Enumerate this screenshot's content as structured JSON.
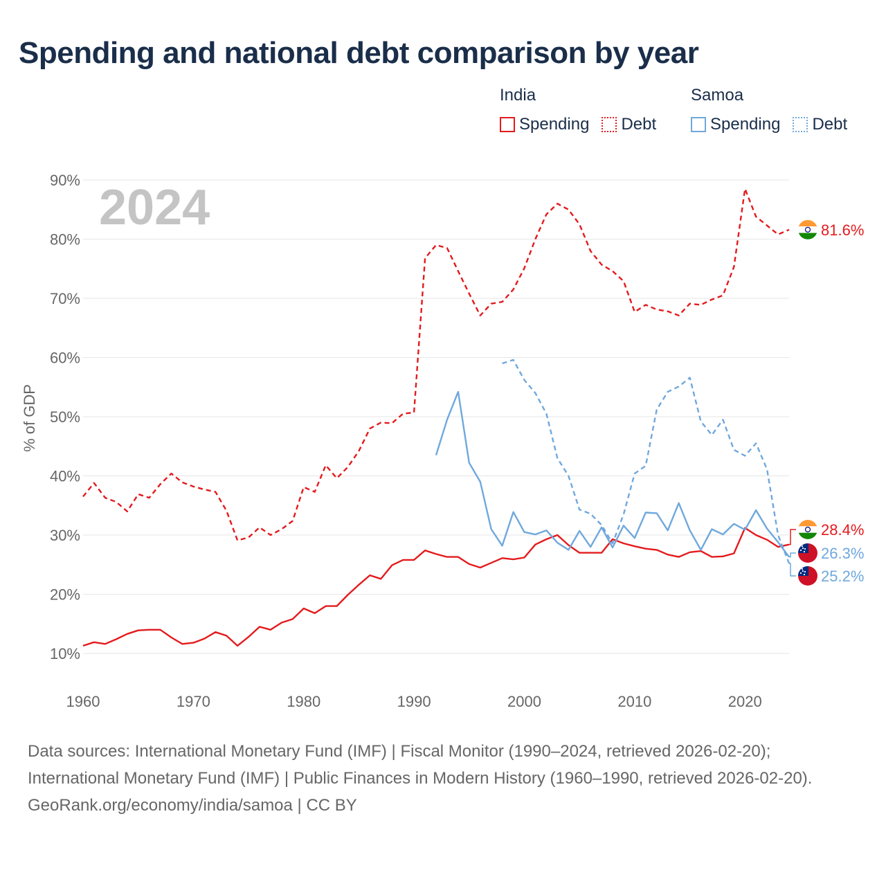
{
  "title": "Spending and national debt comparison by year",
  "legend": {
    "india": {
      "name": "India",
      "spending_label": "Spending",
      "debt_label": "Debt",
      "color": "#e41a1c"
    },
    "samoa": {
      "name": "Samoa",
      "spending_label": "Spending",
      "debt_label": "Debt",
      "color": "#6fa8dc"
    }
  },
  "chart_data": {
    "type": "line",
    "year_label": "2024",
    "ylabel": "% of GDP",
    "xlim": [
      1960,
      2024
    ],
    "ylim": [
      5,
      90
    ],
    "xticks": [
      1960,
      1970,
      1980,
      1990,
      2000,
      2010,
      2020
    ],
    "xtick_labels": [
      "1960",
      "1970",
      "1980",
      "1990",
      "2000",
      "2010",
      "2020"
    ],
    "yticks": [
      10,
      20,
      30,
      40,
      50,
      60,
      70,
      80,
      90
    ],
    "ytick_labels": [
      "10%",
      "20%",
      "30%",
      "40%",
      "50%",
      "60%",
      "70%",
      "80%",
      "90%"
    ],
    "series": [
      {
        "name": "India Spending",
        "country": "India",
        "color": "#e41a1c",
        "dash": "solid",
        "x": [
          1960,
          1961,
          1962,
          1963,
          1964,
          1965,
          1966,
          1967,
          1968,
          1969,
          1970,
          1971,
          1972,
          1973,
          1974,
          1975,
          1976,
          1977,
          1978,
          1979,
          1980,
          1981,
          1982,
          1983,
          1984,
          1985,
          1986,
          1987,
          1988,
          1989,
          1990,
          1991,
          1992,
          1993,
          1994,
          1995,
          1996,
          1997,
          1998,
          1999,
          2000,
          2001,
          2002,
          2003,
          2004,
          2005,
          2006,
          2007,
          2008,
          2009,
          2010,
          2011,
          2012,
          2013,
          2014,
          2015,
          2016,
          2017,
          2018,
          2019,
          2020,
          2021,
          2022,
          2023,
          2024
        ],
        "y": [
          11.3,
          11.9,
          11.6,
          12.4,
          13.3,
          13.9,
          14.0,
          14.0,
          12.7,
          11.6,
          11.8,
          12.5,
          13.6,
          13.0,
          11.3,
          12.8,
          14.5,
          14.0,
          15.2,
          15.8,
          17.6,
          16.8,
          18.0,
          18.0,
          19.9,
          21.6,
          23.2,
          22.6,
          24.9,
          25.8,
          25.8,
          27.4,
          26.8,
          26.3,
          26.3,
          25.1,
          24.5,
          25.3,
          26.1,
          25.9,
          26.2,
          28.4,
          29.3,
          30.0,
          28.3,
          27.0,
          27.0,
          27.0,
          29.3,
          28.6,
          28.1,
          27.7,
          27.5,
          26.7,
          26.3,
          27.1,
          27.3,
          26.3,
          26.4,
          26.9,
          31.2,
          30.0,
          29.2,
          28.0,
          28.4
        ],
        "end_label": "28.4%"
      },
      {
        "name": "India Debt",
        "country": "India",
        "color": "#e41a1c",
        "dash": "dashed",
        "x": [
          1960,
          1961,
          1962,
          1963,
          1964,
          1965,
          1966,
          1967,
          1968,
          1969,
          1970,
          1971,
          1972,
          1973,
          1974,
          1975,
          1976,
          1977,
          1978,
          1979,
          1980,
          1981,
          1982,
          1983,
          1984,
          1985,
          1986,
          1987,
          1988,
          1989,
          1990,
          1991,
          1992,
          1993,
          1994,
          1995,
          1996,
          1997,
          1998,
          1999,
          2000,
          2001,
          2002,
          2003,
          2004,
          2005,
          2006,
          2007,
          2008,
          2009,
          2010,
          2011,
          2012,
          2013,
          2014,
          2015,
          2016,
          2017,
          2018,
          2019,
          2020,
          2021,
          2022,
          2023,
          2024
        ],
        "y": [
          36.5,
          38.8,
          36.3,
          35.6,
          34.0,
          36.9,
          36.3,
          38.6,
          40.4,
          38.9,
          38.2,
          37.7,
          37.3,
          34.1,
          29.1,
          29.6,
          31.3,
          30.0,
          31.0,
          32.4,
          38.1,
          37.3,
          41.8,
          39.6,
          41.5,
          44.2,
          48.0,
          49.0,
          48.9,
          50.5,
          50.7,
          76.8,
          79.0,
          78.5,
          74.6,
          70.8,
          67.1,
          69.1,
          69.4,
          71.5,
          75.1,
          80.0,
          84.2,
          86.0,
          85.0,
          82.5,
          78.0,
          75.7,
          74.6,
          72.9,
          67.7,
          68.9,
          68.1,
          67.8,
          67.1,
          69.1,
          68.9,
          69.8,
          70.5,
          75.3,
          88.5,
          83.8,
          82.3,
          80.8,
          81.6
        ],
        "end_label": "81.6%"
      },
      {
        "name": "Samoa Spending",
        "country": "Samoa",
        "color": "#6fa8dc",
        "dash": "solid",
        "x": [
          1992,
          1993,
          1994,
          1995,
          1996,
          1997,
          1998,
          1999,
          2000,
          2001,
          2002,
          2003,
          2004,
          2005,
          2006,
          2007,
          2008,
          2009,
          2010,
          2011,
          2012,
          2013,
          2014,
          2015,
          2016,
          2017,
          2018,
          2019,
          2020,
          2021,
          2022,
          2023,
          2024
        ],
        "y": [
          43.5,
          49.5,
          54.2,
          42.2,
          39.0,
          31.0,
          28.2,
          33.9,
          30.5,
          30.1,
          30.8,
          28.7,
          27.5,
          30.7,
          28.0,
          31.3,
          27.9,
          31.6,
          29.5,
          33.8,
          33.7,
          30.8,
          35.4,
          30.8,
          27.5,
          31.0,
          30.1,
          31.9,
          30.9,
          34.2,
          31.1,
          28.8,
          26.3
        ],
        "end_label": "26.3%"
      },
      {
        "name": "Samoa Debt",
        "country": "Samoa",
        "color": "#6fa8dc",
        "dash": "dashed",
        "x": [
          1998,
          1999,
          2000,
          2001,
          2002,
          2003,
          2004,
          2005,
          2006,
          2007,
          2008,
          2009,
          2010,
          2011,
          2012,
          2013,
          2014,
          2015,
          2016,
          2017,
          2018,
          2019,
          2020,
          2021,
          2022,
          2023,
          2024
        ],
        "y": [
          59.0,
          59.6,
          56.2,
          54.0,
          50.5,
          43.0,
          40.0,
          34.3,
          33.6,
          31.7,
          28.6,
          33.5,
          40.4,
          41.7,
          51.2,
          54.2,
          55.1,
          56.6,
          49.2,
          46.9,
          49.5,
          44.4,
          43.4,
          45.5,
          41.1,
          30.0,
          25.2
        ],
        "end_label": "25.2%"
      }
    ]
  },
  "footer": {
    "sources": "Data sources: International Monetary Fund (IMF) | Fiscal Monitor (1990–2024, retrieved 2026-02-20); International Monetary Fund (IMF) | Public Finances in Modern History (1960–1990, retrieved 2026-02-20).",
    "credit": "GeoRank.org/economy/india/samoa | CC BY"
  }
}
